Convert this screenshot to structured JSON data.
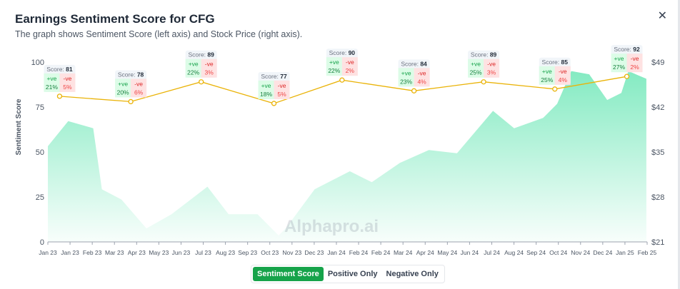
{
  "header": {
    "title": "Earnings Sentiment Score for CFG",
    "subtitle": "The graph shows Sentiment Score (left axis) and Stock Price (right axis).",
    "close_icon": "close-icon"
  },
  "watermark": "Alphapro.ai",
  "toggle": {
    "buttons": [
      "Sentiment Score",
      "Positive Only",
      "Negative Only"
    ],
    "active": "Sentiment Score"
  },
  "colors": {
    "line": "#eab308",
    "area": "#6ee7b7",
    "positive": "#16a34a",
    "negative": "#ef4444",
    "active": "#16a34a"
  },
  "chart_data": {
    "type": "line",
    "x_range": [
      "2023-01-03",
      "2025-02-07"
    ],
    "x_ticks": [
      "Jan 23",
      "Jan 23",
      "Feb 23",
      "Mar 23",
      "Apr 23",
      "May 23",
      "Jun 23",
      "Jul 23",
      "Aug 23",
      "Sep 23",
      "Oct 23",
      "Nov 23",
      "Dec 23",
      "Jan 24",
      "Feb 24",
      "Feb 24",
      "Mar 24",
      "Apr 24",
      "May 24",
      "Jun 24",
      "Jul 24",
      "Aug 24",
      "Sep 24",
      "Oct 24",
      "Nov 24",
      "Dec 24",
      "Jan 25",
      "Feb 25"
    ],
    "left_axis": {
      "label": "Sentiment Score",
      "ylim": [
        0,
        100
      ],
      "ticks": [
        "0",
        "25",
        "50",
        "75",
        "100"
      ]
    },
    "right_axis": {
      "ylim": [
        21,
        49
      ],
      "ticks": [
        "$21",
        "$28",
        "$35",
        "$42",
        "$49"
      ]
    },
    "sentiment": [
      {
        "date": "2023-01-18",
        "score": 81,
        "pos": "21%",
        "neg": "5%"
      },
      {
        "date": "2023-04-19",
        "score": 78,
        "pos": "20%",
        "neg": "6%"
      },
      {
        "date": "2023-07-18",
        "score": 89,
        "pos": "22%",
        "neg": "3%"
      },
      {
        "date": "2023-10-19",
        "score": 77,
        "pos": "18%",
        "neg": "5%"
      },
      {
        "date": "2024-01-14",
        "score": 90,
        "pos": "22%",
        "neg": "2%"
      },
      {
        "date": "2024-04-15",
        "score": 84,
        "pos": "23%",
        "neg": "4%"
      },
      {
        "date": "2024-07-13",
        "score": 89,
        "pos": "25%",
        "neg": "3%"
      },
      {
        "date": "2024-10-12",
        "score": 85,
        "pos": "25%",
        "neg": "4%"
      },
      {
        "date": "2025-01-12",
        "score": 92,
        "pos": "27%",
        "neg": "2%"
      }
    ],
    "labels": {
      "score": "Score:",
      "pos": "+ve",
      "neg": "-ve"
    },
    "price": [
      [
        "2023-01-03",
        35.9
      ],
      [
        "2023-01-29",
        39.8
      ],
      [
        "2023-03-02",
        38.7
      ],
      [
        "2023-03-13",
        29.2
      ],
      [
        "2023-04-07",
        27.6
      ],
      [
        "2023-05-09",
        23.1
      ],
      [
        "2023-06-10",
        25.3
      ],
      [
        "2023-07-26",
        29.6
      ],
      [
        "2023-08-22",
        25.3
      ],
      [
        "2023-09-28",
        25.3
      ],
      [
        "2023-10-25",
        22.0
      ],
      [
        "2023-11-03",
        23.1
      ],
      [
        "2023-12-10",
        29.2
      ],
      [
        "2024-01-24",
        32.0
      ],
      [
        "2024-02-21",
        30.3
      ],
      [
        "2024-03-28",
        33.3
      ],
      [
        "2024-05-04",
        35.3
      ],
      [
        "2024-06-09",
        34.8
      ],
      [
        "2024-07-25",
        41.4
      ],
      [
        "2024-08-21",
        38.7
      ],
      [
        "2024-09-27",
        40.3
      ],
      [
        "2024-10-15",
        42.5
      ],
      [
        "2024-11-02",
        47.6
      ],
      [
        "2024-11-25",
        47.1
      ],
      [
        "2024-12-18",
        43.1
      ],
      [
        "2025-01-05",
        44.2
      ],
      [
        "2025-01-14",
        47.6
      ],
      [
        "2025-02-06",
        46.4
      ]
    ]
  }
}
